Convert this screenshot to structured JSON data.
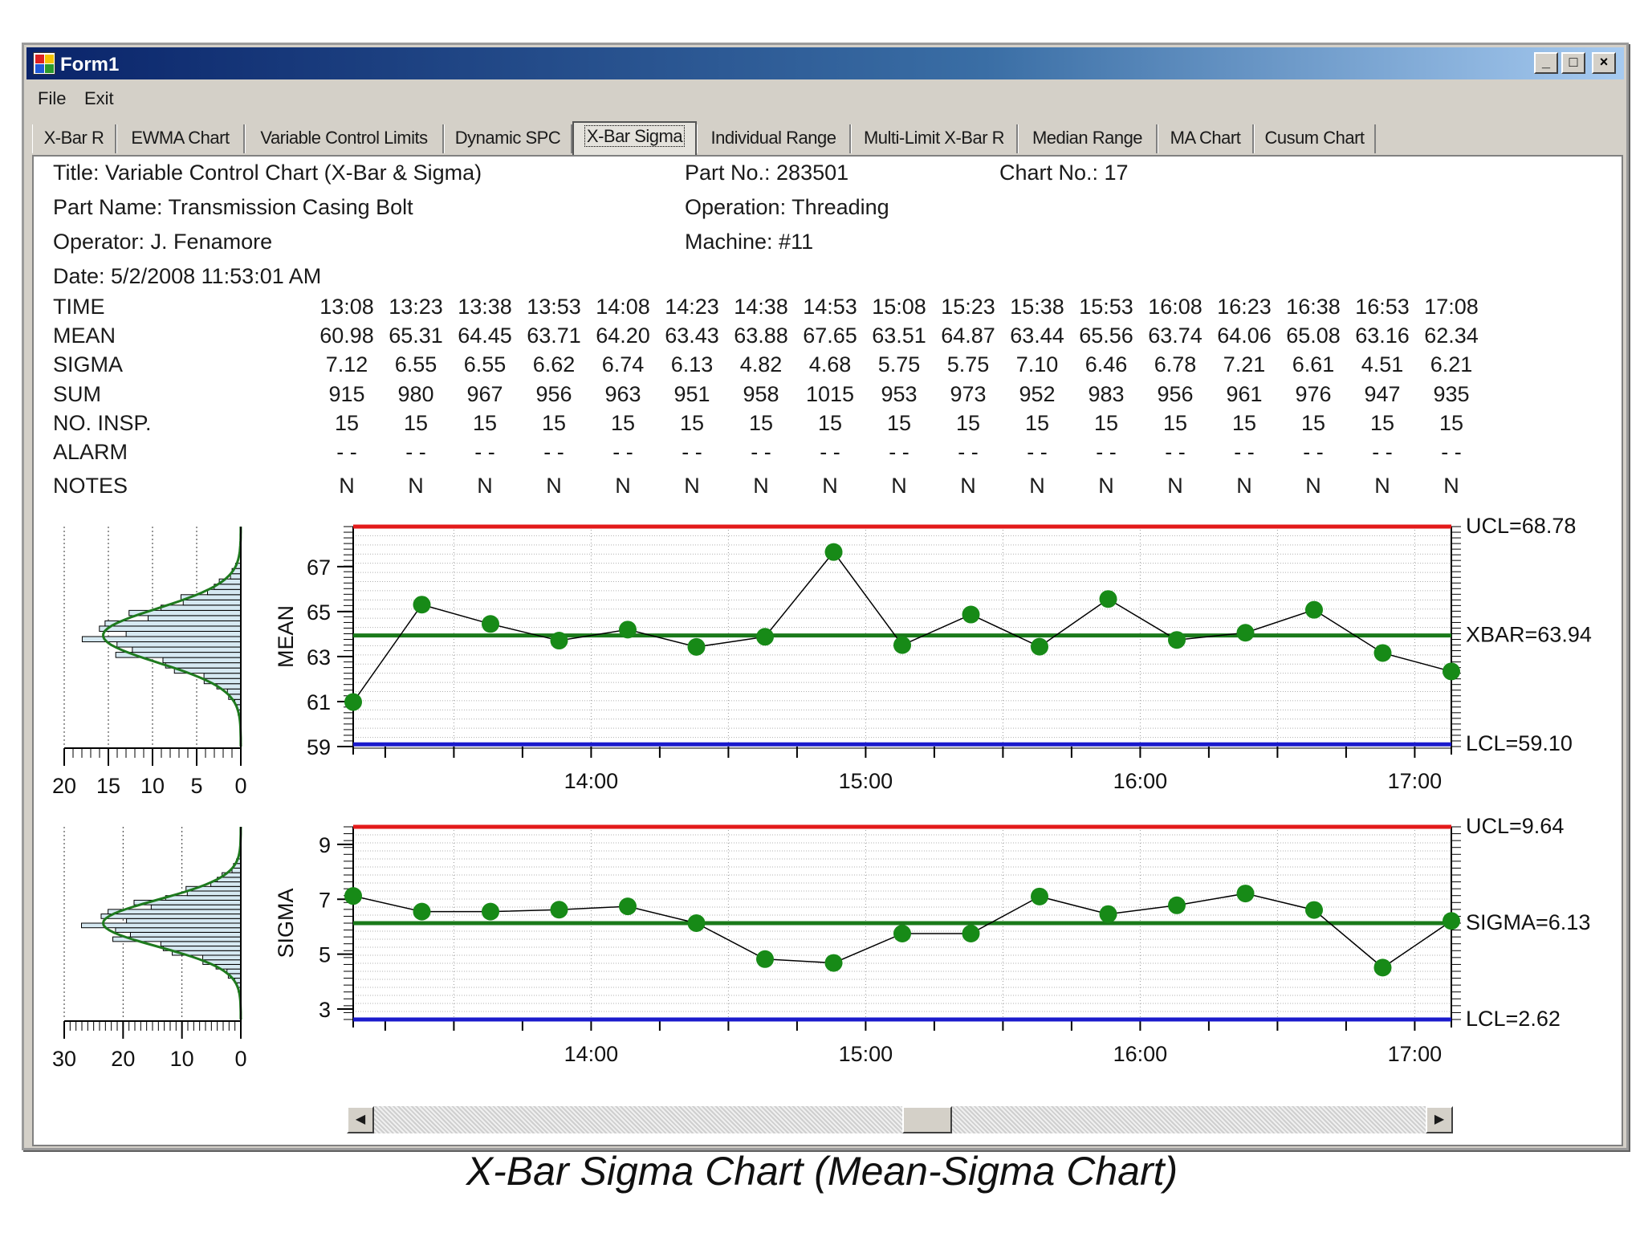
{
  "window": {
    "title": "Form1",
    "minimize_label": "_",
    "maximize_label": "□",
    "close_label": "×"
  },
  "menu": [
    {
      "label": "File"
    },
    {
      "label": "Exit"
    }
  ],
  "tabs": [
    {
      "label": "X-Bar R"
    },
    {
      "label": "EWMA Chart"
    },
    {
      "label": "Variable Control Limits"
    },
    {
      "label": "Dynamic SPC"
    },
    {
      "label": "X-Bar Sigma",
      "active": true
    },
    {
      "label": "Individual Range"
    },
    {
      "label": "Multi-Limit X-Bar R"
    },
    {
      "label": "Median Range"
    },
    {
      "label": "MA Chart"
    },
    {
      "label": "Cusum Chart"
    }
  ],
  "header": {
    "title": "Title: Variable Control Chart (X-Bar & Sigma)",
    "part_no": "Part No.: 283501",
    "chart_no": "Chart No.: 17",
    "part_name": "Part Name: Transmission Casing Bolt",
    "operation": "Operation: Threading",
    "operator": "Operator: J. Fenamore",
    "machine": "Machine: #11",
    "date": "Date: 5/2/2008 11:53:01 AM"
  },
  "table": {
    "row_labels": {
      "time": "TIME",
      "mean": "MEAN",
      "sigma": "SIGMA",
      "sum": "SUM",
      "no_insp": "NO. INSP.",
      "alarm": "ALARM",
      "notes": "NOTES"
    },
    "columns": [
      {
        "time": "13:08",
        "mean": "60.98",
        "sigma": "7.12",
        "sum": "915",
        "no_insp": "15",
        "alarm": "-  -",
        "notes": "N"
      },
      {
        "time": "13:23",
        "mean": "65.31",
        "sigma": "6.55",
        "sum": "980",
        "no_insp": "15",
        "alarm": "-  -",
        "notes": "N"
      },
      {
        "time": "13:38",
        "mean": "64.45",
        "sigma": "6.55",
        "sum": "967",
        "no_insp": "15",
        "alarm": "-  -",
        "notes": "N"
      },
      {
        "time": "13:53",
        "mean": "63.71",
        "sigma": "6.62",
        "sum": "956",
        "no_insp": "15",
        "alarm": "-  -",
        "notes": "N"
      },
      {
        "time": "14:08",
        "mean": "64.20",
        "sigma": "6.74",
        "sum": "963",
        "no_insp": "15",
        "alarm": "-  -",
        "notes": "N"
      },
      {
        "time": "14:23",
        "mean": "63.43",
        "sigma": "6.13",
        "sum": "951",
        "no_insp": "15",
        "alarm": "-  -",
        "notes": "N"
      },
      {
        "time": "14:38",
        "mean": "63.88",
        "sigma": "4.82",
        "sum": "958",
        "no_insp": "15",
        "alarm": "-  -",
        "notes": "N"
      },
      {
        "time": "14:53",
        "mean": "67.65",
        "sigma": "4.68",
        "sum": "1015",
        "no_insp": "15",
        "alarm": "-  -",
        "notes": "N"
      },
      {
        "time": "15:08",
        "mean": "63.51",
        "sigma": "5.75",
        "sum": "953",
        "no_insp": "15",
        "alarm": "-  -",
        "notes": "N"
      },
      {
        "time": "15:23",
        "mean": "64.87",
        "sigma": "5.75",
        "sum": "973",
        "no_insp": "15",
        "alarm": "-  -",
        "notes": "N"
      },
      {
        "time": "15:38",
        "mean": "63.44",
        "sigma": "7.10",
        "sum": "952",
        "no_insp": "15",
        "alarm": "-  -",
        "notes": "N"
      },
      {
        "time": "15:53",
        "mean": "65.56",
        "sigma": "6.46",
        "sum": "983",
        "no_insp": "15",
        "alarm": "-  -",
        "notes": "N"
      },
      {
        "time": "16:08",
        "mean": "63.74",
        "sigma": "6.78",
        "sum": "956",
        "no_insp": "15",
        "alarm": "-  -",
        "notes": "N"
      },
      {
        "time": "16:23",
        "mean": "64.06",
        "sigma": "7.21",
        "sum": "961",
        "no_insp": "15",
        "alarm": "-  -",
        "notes": "N"
      },
      {
        "time": "16:38",
        "mean": "65.08",
        "sigma": "6.61",
        "sum": "976",
        "no_insp": "15",
        "alarm": "-  -",
        "notes": "N"
      },
      {
        "time": "16:53",
        "mean": "63.16",
        "sigma": "4.51",
        "sum": "947",
        "no_insp": "15",
        "alarm": "-  -",
        "notes": "N"
      },
      {
        "time": "17:08",
        "mean": "62.34",
        "sigma": "6.21",
        "sum": "935",
        "no_insp": "15",
        "alarm": "-  -",
        "notes": "N"
      }
    ]
  },
  "chart_data": [
    {
      "type": "line",
      "ylabel": "MEAN",
      "x": [
        "13:08",
        "13:23",
        "13:38",
        "13:53",
        "14:08",
        "14:23",
        "14:38",
        "14:53",
        "15:08",
        "15:23",
        "15:38",
        "15:53",
        "16:08",
        "16:23",
        "16:38",
        "16:53",
        "17:08"
      ],
      "values": [
        60.98,
        65.31,
        64.45,
        63.71,
        64.2,
        63.43,
        63.88,
        67.65,
        63.51,
        64.87,
        63.44,
        65.56,
        63.74,
        64.06,
        65.08,
        63.16,
        62.34
      ],
      "ylim": [
        59,
        68.78
      ],
      "y_ticks": [
        "59",
        "61",
        "63",
        "65",
        "67"
      ],
      "x_ticks": [
        "14:00",
        "15:00",
        "16:00",
        "17:00"
      ],
      "limits": {
        "ucl": "UCL=68.78",
        "center": "XBAR=63.94",
        "lcl": "LCL=59.10"
      },
      "limit_values": {
        "ucl": 68.78,
        "center": 63.94,
        "lcl": 59.1
      },
      "colors": {
        "ucl": "#e31a1a",
        "center": "#1a7a1a",
        "lcl": "#1a1acc",
        "points": "#178a17"
      }
    },
    {
      "type": "line",
      "ylabel": "SIGMA",
      "x": [
        "13:08",
        "13:23",
        "13:38",
        "13:53",
        "14:08",
        "14:23",
        "14:38",
        "14:53",
        "15:08",
        "15:23",
        "15:38",
        "15:53",
        "16:08",
        "16:23",
        "16:38",
        "16:53",
        "17:08"
      ],
      "values": [
        7.12,
        6.55,
        6.55,
        6.62,
        6.74,
        6.13,
        4.82,
        4.68,
        5.75,
        5.75,
        7.1,
        6.46,
        6.78,
        7.21,
        6.61,
        4.51,
        6.21
      ],
      "ylim": [
        2.62,
        9.64
      ],
      "y_ticks": [
        "3",
        "5",
        "7",
        "9"
      ],
      "x_ticks": [
        "14:00",
        "15:00",
        "16:00",
        "17:00"
      ],
      "limits": {
        "ucl": "UCL=9.64",
        "center": "SIGMA=6.13",
        "lcl": "LCL=2.62"
      },
      "limit_values": {
        "ucl": 9.64,
        "center": 6.13,
        "lcl": 2.62
      },
      "colors": {
        "ucl": "#e31a1a",
        "center": "#1a7a1a",
        "lcl": "#1a1acc",
        "points": "#178a17"
      }
    },
    {
      "type": "bar",
      "orientation": "horizontal",
      "x_ticks": [
        "20",
        "15",
        "10",
        "5",
        "0"
      ],
      "xlim": [
        20,
        0
      ],
      "ylim": [
        59,
        68.78
      ]
    },
    {
      "type": "bar",
      "orientation": "horizontal",
      "x_ticks": [
        "30",
        "20",
        "10",
        "0"
      ],
      "xlim": [
        30,
        0
      ],
      "ylim": [
        2.62,
        9.64
      ]
    }
  ],
  "caption": "X-Bar Sigma Chart (Mean-Sigma  Chart)"
}
